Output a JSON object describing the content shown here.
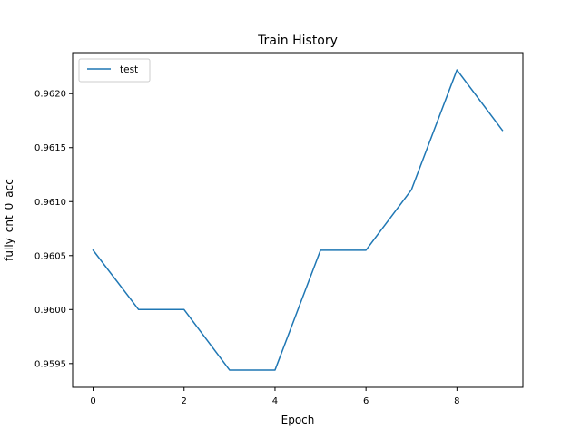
{
  "chart_data": {
    "type": "line",
    "title": "Train History",
    "xlabel": "Epoch",
    "ylabel": "fully_cnt_0_acc",
    "x": [
      0,
      1,
      2,
      3,
      4,
      5,
      6,
      7,
      8,
      9
    ],
    "series": [
      {
        "name": "test",
        "color": "#1f77b4",
        "values": [
          0.96055,
          0.96,
          0.96,
          0.95944,
          0.95944,
          0.96055,
          0.96055,
          0.96111,
          0.96222,
          0.96166
        ]
      }
    ],
    "xlim": [
      -0.45,
      9.45
    ],
    "ylim": [
      0.95928,
      0.96238
    ],
    "xticks": [
      0,
      2,
      4,
      6,
      8
    ],
    "xtick_labels": [
      "0",
      "2",
      "4",
      "6",
      "8"
    ],
    "yticks": [
      0.9595,
      0.96,
      0.9605,
      0.961,
      0.9615,
      0.962
    ],
    "ytick_labels": [
      "0.9595",
      "0.9600",
      "0.9605",
      "0.9610",
      "0.9615",
      "0.9620"
    ],
    "grid": false,
    "legend_position": "upper-left"
  }
}
